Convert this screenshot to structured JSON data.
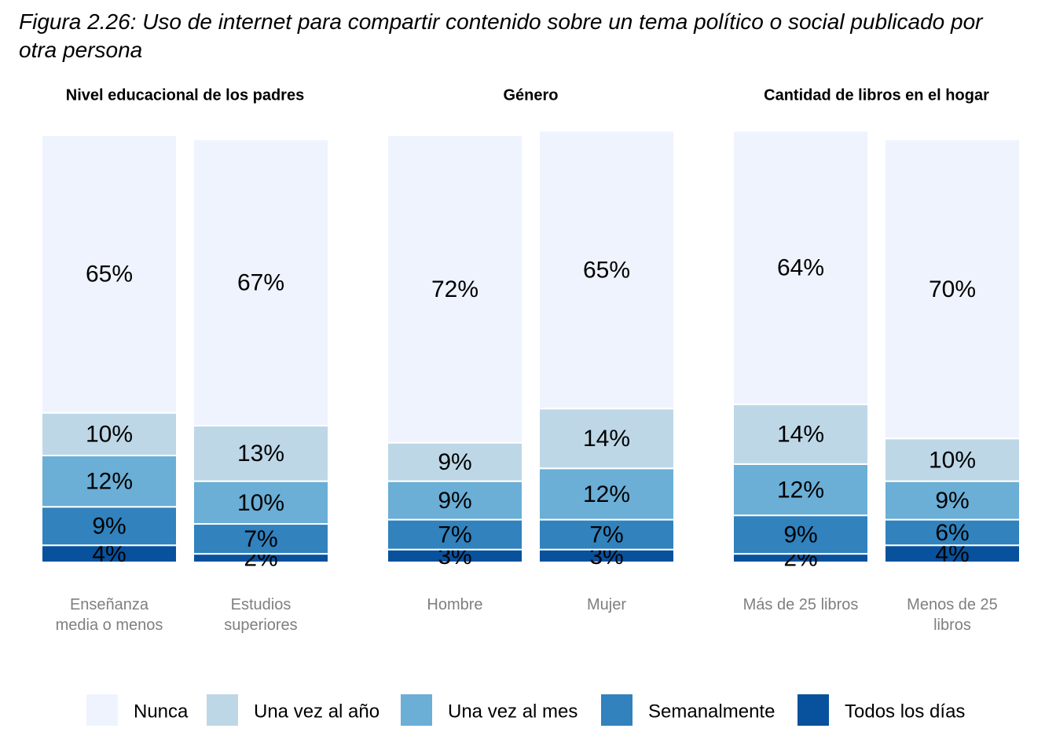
{
  "chart_data": {
    "type": "bar",
    "stacked": true,
    "title": "Figura 2.26: Uso de internet para compartir contenido sobre un tema político o social publicado por otra persona",
    "ylim": [
      0,
      100
    ],
    "series": [
      {
        "name": "Nunca",
        "color": "#eef3fe"
      },
      {
        "name": "Una vez al año",
        "color": "#bdd7e7"
      },
      {
        "name": "Una vez al mes",
        "color": "#6baed6"
      },
      {
        "name": "Semanalmente",
        "color": "#3182bd"
      },
      {
        "name": "Todos los días",
        "color": "#08519c"
      }
    ],
    "facets": [
      {
        "title": "Nivel educacional de los padres",
        "categories": [
          "Enseñanza media o menos",
          "Estudios superiores"
        ],
        "series": [
          {
            "values": [
              65,
              67
            ],
            "value_labels": [
              "65%",
              "67%"
            ]
          },
          {
            "values": [
              10,
              13
            ],
            "value_labels": [
              "10%",
              "13%"
            ]
          },
          {
            "values": [
              12,
              10
            ],
            "value_labels": [
              "12%",
              "10%"
            ]
          },
          {
            "values": [
              9,
              7
            ],
            "value_labels": [
              "9%",
              "7%"
            ]
          },
          {
            "values": [
              4,
              2
            ],
            "value_labels": [
              "4%",
              "2%"
            ]
          }
        ]
      },
      {
        "title": "Género",
        "categories": [
          "Hombre",
          "Mujer"
        ],
        "series": [
          {
            "values": [
              72,
              65
            ],
            "value_labels": [
              "72%",
              "65%"
            ]
          },
          {
            "values": [
              9,
              14
            ],
            "value_labels": [
              "9%",
              "14%"
            ]
          },
          {
            "values": [
              9,
              12
            ],
            "value_labels": [
              "9%",
              "12%"
            ]
          },
          {
            "values": [
              7,
              7
            ],
            "value_labels": [
              "7%",
              "7%"
            ]
          },
          {
            "values": [
              3,
              3
            ],
            "value_labels": [
              "3%",
              "3%"
            ]
          }
        ]
      },
      {
        "title": "Cantidad de libros en el hogar",
        "categories": [
          "Más de 25 libros",
          "Menos de 25 libros"
        ],
        "series": [
          {
            "values": [
              64,
              70
            ],
            "value_labels": [
              "64%",
              "70%"
            ]
          },
          {
            "values": [
              14,
              10
            ],
            "value_labels": [
              "14%",
              "10%"
            ]
          },
          {
            "values": [
              12,
              9
            ],
            "value_labels": [
              "12%",
              "9%"
            ]
          },
          {
            "values": [
              9,
              6
            ],
            "value_labels": [
              "9%",
              "6%"
            ]
          },
          {
            "values": [
              2,
              4
            ],
            "value_labels": [
              "2%",
              "4%"
            ]
          }
        ]
      }
    ]
  }
}
